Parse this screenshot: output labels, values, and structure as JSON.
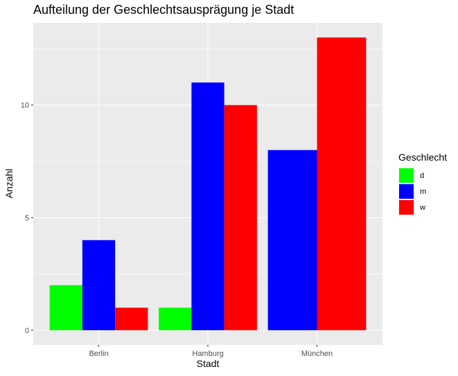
{
  "chart_data": {
    "type": "bar",
    "title": "Aufteilung der Geschlechtsausprägung je Stadt",
    "xlabel": "Stadt",
    "ylabel": "Anzahl",
    "categories": [
      "Berlin",
      "Hamburg",
      "München"
    ],
    "series": [
      {
        "name": "d",
        "color": "#00ff00",
        "values": [
          2,
          1,
          null
        ]
      },
      {
        "name": "m",
        "color": "#0000ff",
        "values": [
          4,
          11,
          8
        ]
      },
      {
        "name": "w",
        "color": "#ff0000",
        "values": [
          1,
          10,
          13
        ]
      }
    ],
    "yticks": [
      0,
      5,
      10
    ],
    "ylim": [
      -0.65,
      13.65
    ],
    "grid": true,
    "panel_color": "#ebebeb",
    "legend": {
      "title": "Geschlecht",
      "placement": "right"
    }
  }
}
